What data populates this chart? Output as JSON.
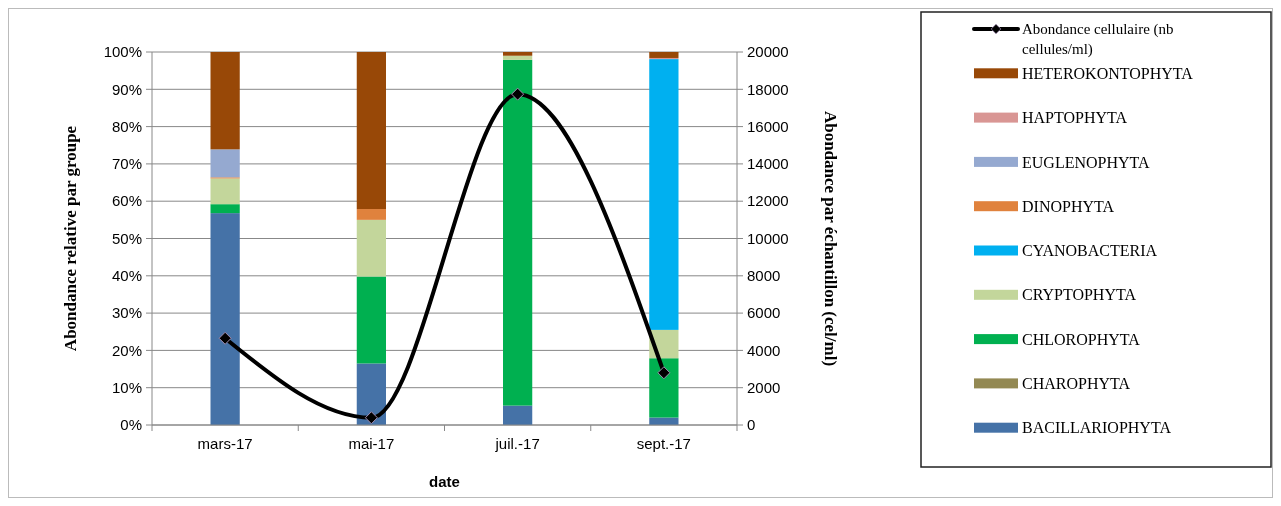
{
  "chart_data": {
    "type": "bar",
    "stacked": true,
    "xlabel": "date",
    "ylabel": "Abondance relative par groupe",
    "y2label": "Abondance par échantillon (cel/ml)",
    "categories": [
      "mars-17",
      "mai-17",
      "juil.-17",
      "sept.-17"
    ],
    "ylim": [
      0,
      100
    ],
    "yticks": [
      {
        "value": 0,
        "label": "0%"
      },
      {
        "value": 10,
        "label": "10%"
      },
      {
        "value": 20,
        "label": "20%"
      },
      {
        "value": 30,
        "label": "30%"
      },
      {
        "value": 40,
        "label": "40%"
      },
      {
        "value": 50,
        "label": "50%"
      },
      {
        "value": 60,
        "label": "60%"
      },
      {
        "value": 70,
        "label": "70%"
      },
      {
        "value": 80,
        "label": "80%"
      },
      {
        "value": 90,
        "label": "90%"
      },
      {
        "value": 100,
        "label": "100%"
      }
    ],
    "y2lim": [
      0,
      20000
    ],
    "y2ticks": [
      0,
      2000,
      4000,
      6000,
      8000,
      10000,
      12000,
      14000,
      16000,
      18000,
      20000
    ],
    "grid": "y",
    "legend": "right",
    "series": [
      {
        "name": "BACILLARIOPHYTA",
        "color": "#4572a7",
        "values": [
          56.8,
          16.5,
          5.2,
          2.0
        ]
      },
      {
        "name": "CHAROPHYTA",
        "color": "#938953",
        "values": [
          0,
          0,
          0,
          0
        ]
      },
      {
        "name": "CHLOROPHYTA",
        "color": "#00b050",
        "values": [
          2.4,
          23.3,
          92.7,
          15.9
        ]
      },
      {
        "name": "CRYPTOPHYTA",
        "color": "#c3d69b",
        "values": [
          6.9,
          15.2,
          1.1,
          7.6
        ]
      },
      {
        "name": "CYANOBACTERIA",
        "color": "#00b0f0",
        "values": [
          0,
          0,
          0,
          72.6
        ]
      },
      {
        "name": "DINOPHYTA",
        "color": "#e0823d",
        "values": [
          0.3,
          2.9,
          0,
          0
        ]
      },
      {
        "name": "EUGLENOPHYTA",
        "color": "#95a9d0",
        "values": [
          7.5,
          0,
          0,
          0
        ]
      },
      {
        "name": "HAPTOPHYTA",
        "color": "#d99694",
        "values": [
          0,
          0,
          0,
          0.3
        ]
      },
      {
        "name": "HETEROKONTOPHYTA",
        "color": "#984807",
        "values": [
          26.1,
          42.1,
          1.0,
          1.6
        ]
      },
      {
        "name": "Abondance cellulaire (nb cellules/ml)",
        "type": "line",
        "axis": "y2",
        "color": "#000000",
        "marker": "diamond",
        "line_style": "solid",
        "values": [
          4650,
          390,
          17740,
          2800
        ]
      }
    ]
  }
}
